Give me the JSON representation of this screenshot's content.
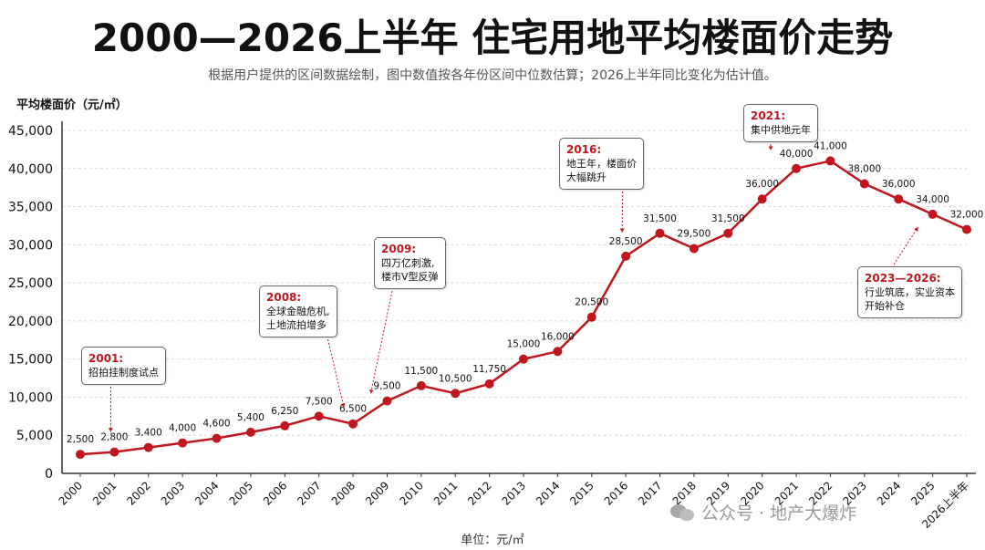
{
  "title": "2000—2026上半年 住宅用地平均楼面价走势",
  "subtitle": "根据用户提供的区间数据绘制，图中数值按各年份区间中位数估算；2026上半年同比变化为估计值。",
  "colors": {
    "line": "#c0161d",
    "accent": "#c0161d",
    "grid": "#d9d9d9",
    "text": "#111111"
  },
  "chart_data": {
    "type": "line",
    "ylabel": "平均楼面价（元/㎡）",
    "xlabel": "单位：元/㎡",
    "ylim": [
      0,
      45000
    ],
    "yticks": [
      "0",
      "5,000",
      "10,000",
      "15,000",
      "20,000",
      "25,000",
      "30,000",
      "35,000",
      "40,000",
      "45,000"
    ],
    "grid": "horizontal",
    "categories": [
      "2000",
      "2001",
      "2002",
      "2003",
      "2004",
      "2005",
      "2006",
      "2007",
      "2008",
      "2009",
      "2010",
      "2011",
      "2012",
      "2013",
      "2014",
      "2015",
      "2016",
      "2017",
      "2018",
      "2019",
      "2020",
      "2021",
      "2022",
      "2023",
      "2024",
      "2025",
      "2026上半年"
    ],
    "values": [
      2500,
      2800,
      3400,
      4000,
      4600,
      5400,
      6250,
      7500,
      6500,
      9500,
      11500,
      10500,
      11750,
      15000,
      16000,
      20500,
      28500,
      31500,
      29500,
      31500,
      36000,
      40000,
      41000,
      38000,
      36000,
      34000,
      32000
    ],
    "data_labels": [
      "2,500",
      "2,800",
      "3,400",
      "4,000",
      "4,600",
      "5,400",
      "6,250",
      "7,500",
      "6,500",
      "9,500",
      "11,500",
      "10,500",
      "11,750",
      "15,000",
      "16,000",
      "20,500",
      "28,500",
      "31,500",
      "29,500",
      "31,500",
      "36,000",
      "40,000",
      "41,000",
      "38,000",
      "36,000",
      "34,000",
      "32,000"
    ],
    "annotations": [
      {
        "title": "2001:",
        "lines": [
          "招拍挂制度试点"
        ],
        "category": "2001"
      },
      {
        "title": "2008:",
        "lines": [
          "全球金融危机,",
          "土地流拍增多"
        ],
        "category": "2008"
      },
      {
        "title": "2009:",
        "lines": [
          "四万亿刺激,",
          "楼市V型反弹"
        ],
        "category": "2009"
      },
      {
        "title": "2016:",
        "lines": [
          "地王年，楼面价",
          "大幅跳升"
        ],
        "category": "2016"
      },
      {
        "title": "2021:",
        "lines": [
          "集中供地元年"
        ],
        "category": "2021"
      },
      {
        "title": "2023—2026:",
        "lines": [
          "行业筑底，实业资本",
          "开始补仓"
        ],
        "category": "2025"
      }
    ]
  },
  "watermark": {
    "text": "公众号 · 地产大爆炸",
    "icon": "wechat-icon"
  }
}
